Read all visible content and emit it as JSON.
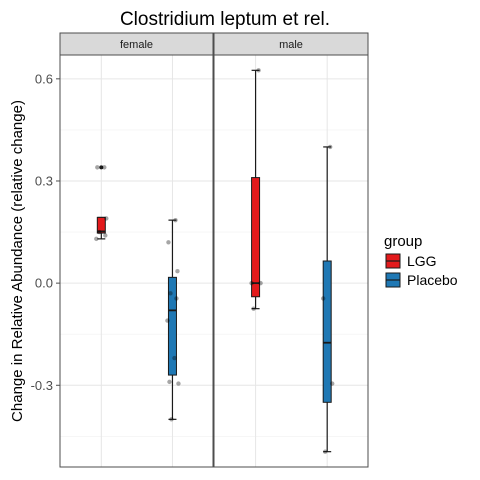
{
  "chart_data": {
    "type": "boxplot",
    "title": "Clostridium leptum et rel.",
    "ylabel": "Change in Relative Abundance (relative change)",
    "xlabel": "",
    "ylim": [
      -0.54,
      0.67
    ],
    "y_ticks": [
      0.6,
      0.3,
      0.0,
      -0.3
    ],
    "y_tick_labels": [
      "0.6",
      "0.3",
      "0.0",
      "-0.3"
    ],
    "facets": [
      "female",
      "male"
    ],
    "legend": {
      "title": "group",
      "position": "right",
      "items": [
        {
          "label": "LGG",
          "color": "#e31a1c"
        },
        {
          "label": "Placebo",
          "color": "#1f78b4"
        }
      ]
    },
    "grid": true,
    "boxes": [
      {
        "facet": "female",
        "group": "LGG",
        "color": "#e31a1c",
        "whisker_low": 0.13,
        "q1": 0.147,
        "median": 0.152,
        "q3": 0.193,
        "whisker_high": 0.193,
        "outliers": [
          0.34
        ],
        "points": [
          0.34,
          0.34,
          0.19,
          0.15,
          0.14,
          0.13
        ]
      },
      {
        "facet": "female",
        "group": "Placebo",
        "color": "#1f78b4",
        "whisker_low": -0.4,
        "q1": -0.27,
        "median": -0.08,
        "q3": 0.017,
        "whisker_high": 0.185,
        "outliers": [],
        "points": [
          0.185,
          0.12,
          0.035,
          -0.03,
          -0.045,
          -0.11,
          -0.22,
          -0.29,
          -0.295,
          -0.4
        ]
      },
      {
        "facet": "male",
        "group": "LGG",
        "color": "#e31a1c",
        "whisker_low": -0.075,
        "q1": -0.04,
        "median": 0.0,
        "q3": 0.31,
        "whisker_high": 0.625,
        "outliers": [],
        "points": [
          0.625,
          0.0,
          0.0,
          -0.075
        ]
      },
      {
        "facet": "male",
        "group": "Placebo",
        "color": "#1f78b4",
        "whisker_low": -0.495,
        "q1": -0.35,
        "median": -0.175,
        "q3": 0.065,
        "whisker_high": 0.4,
        "outliers": [],
        "points": [
          0.4,
          -0.045,
          -0.295,
          -0.495
        ]
      }
    ]
  }
}
